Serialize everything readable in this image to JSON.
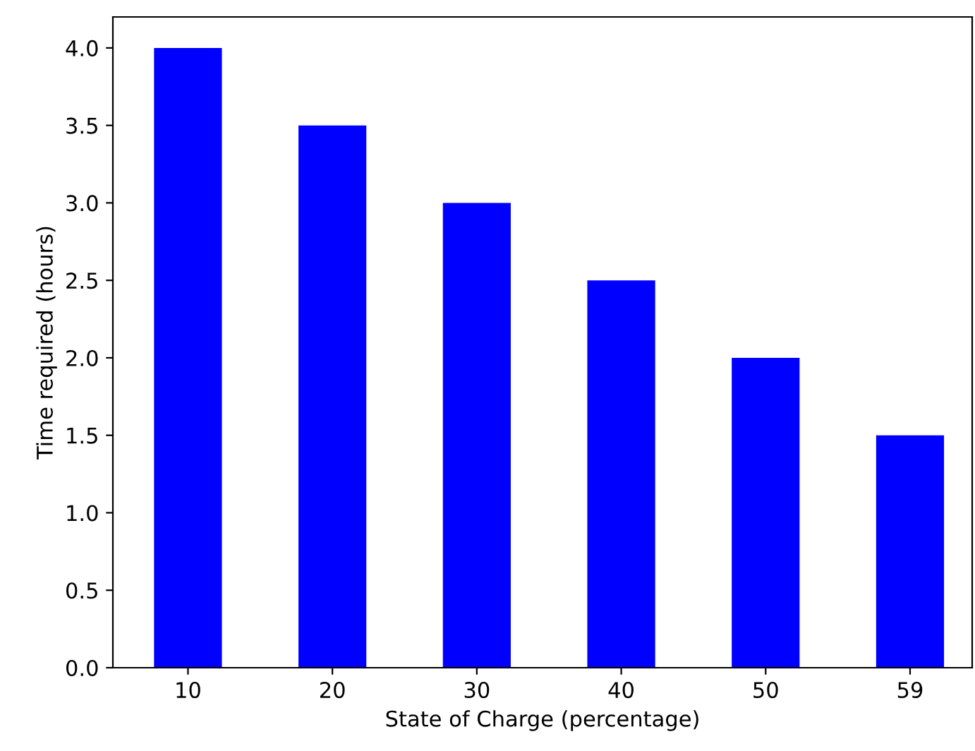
{
  "chart_data": {
    "type": "bar",
    "xlabel": "State of Charge (percentage)",
    "ylabel": "Time required (hours)",
    "categories": [
      "10",
      "20",
      "30",
      "40",
      "50",
      "59"
    ],
    "values": [
      4.0,
      3.5,
      3.0,
      2.5,
      2.0,
      1.5
    ],
    "color": "#0000ff",
    "ylim": [
      0,
      4.2
    ],
    "yticks": [
      {
        "value": 0,
        "label": "0.0"
      },
      {
        "value": 0.5,
        "label": "0.5"
      },
      {
        "value": 1,
        "label": "1.0"
      },
      {
        "value": 1.5,
        "label": "1.5"
      },
      {
        "value": 2,
        "label": "2.0"
      },
      {
        "value": 2.5,
        "label": "2.5"
      },
      {
        "value": 3,
        "label": "3.0"
      },
      {
        "value": 3.5,
        "label": "3.5"
      },
      {
        "value": 4,
        "label": "4.0"
      }
    ],
    "grid": false
  }
}
